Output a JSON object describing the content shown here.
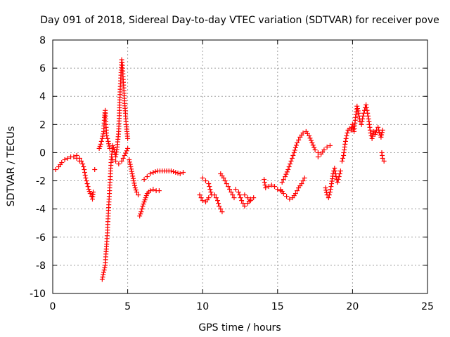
{
  "chart_data": {
    "type": "scatter",
    "title": "Day 091 of 2018, Sidereal Day-to-day VTEC variation (SDTVAR) for receiver pove",
    "xlabel": "GPS time / hours",
    "ylabel": "SDTVAR / TECUs",
    "xlim": [
      0,
      25
    ],
    "ylim": [
      -10,
      8
    ],
    "xticks": [
      "0",
      "5",
      "10",
      "15",
      "20",
      "25"
    ],
    "yticks": [
      "-10",
      "-8",
      "-6",
      "-4",
      "-2",
      "0",
      "2",
      "4",
      "6",
      "8"
    ],
    "grid": true,
    "marker": "+",
    "color": "#ff0000",
    "series": [
      {
        "name": "SDTVAR",
        "segments": [
          [
            [
              0.2,
              -1.2
            ],
            [
              0.4,
              -1.0
            ],
            [
              0.6,
              -0.7
            ],
            [
              0.8,
              -0.5
            ],
            [
              1.0,
              -0.4
            ],
            [
              1.2,
              -0.3
            ],
            [
              1.4,
              -0.3
            ],
            [
              1.6,
              -0.4
            ],
            [
              1.8,
              -0.6
            ]
          ],
          [
            [
              1.6,
              -0.2
            ],
            [
              1.8,
              -0.4
            ],
            [
              2.0,
              -0.8
            ],
            [
              2.1,
              -1.2
            ],
            [
              2.2,
              -1.8
            ],
            [
              2.3,
              -2.2
            ],
            [
              2.4,
              -2.6
            ],
            [
              2.5,
              -2.9
            ],
            [
              2.6,
              -3.1
            ],
            [
              2.7,
              -2.8
            ],
            [
              2.65,
              -3.3
            ]
          ],
          [
            [
              2.8,
              -1.2
            ]
          ],
          [
            [
              3.1,
              0.3
            ],
            [
              3.2,
              0.6
            ],
            [
              3.3,
              1.0
            ],
            [
              3.4,
              1.5
            ],
            [
              3.45,
              2.5
            ],
            [
              3.5,
              3.0
            ],
            [
              3.55,
              2.0
            ],
            [
              3.6,
              1.2
            ],
            [
              3.7,
              0.8
            ],
            [
              3.8,
              0.3
            ]
          ],
          [
            [
              3.3,
              -9.0
            ],
            [
              3.4,
              -8.5
            ],
            [
              3.5,
              -8.0
            ],
            [
              3.55,
              -7.2
            ],
            [
              3.6,
              -6.5
            ],
            [
              3.65,
              -5.5
            ],
            [
              3.7,
              -4.5
            ],
            [
              3.75,
              -3.5
            ],
            [
              3.8,
              -2.5
            ],
            [
              3.85,
              -1.5
            ],
            [
              3.9,
              -0.5
            ],
            [
              4.0,
              0.5
            ],
            [
              4.1,
              0.2
            ],
            [
              4.2,
              -0.3
            ],
            [
              4.3,
              0.4
            ],
            [
              4.4,
              1.5
            ],
            [
              4.45,
              3.0
            ],
            [
              4.5,
              4.5
            ],
            [
              4.55,
              5.5
            ],
            [
              4.6,
              6.6
            ],
            [
              4.65,
              6.2
            ],
            [
              4.7,
              5.2
            ],
            [
              4.75,
              4.4
            ],
            [
              4.8,
              3.5
            ],
            [
              4.85,
              2.8
            ],
            [
              4.9,
              2.0
            ],
            [
              4.95,
              1.5
            ],
            [
              5.0,
              1.0
            ]
          ],
          [
            [
              4.0,
              -0.5
            ],
            [
              4.2,
              -0.6
            ],
            [
              4.4,
              -0.8
            ],
            [
              4.6,
              -0.6
            ],
            [
              4.8,
              -0.2
            ],
            [
              5.0,
              0.3
            ]
          ],
          [
            [
              5.1,
              -0.5
            ],
            [
              5.2,
              -1.0
            ],
            [
              5.3,
              -1.5
            ],
            [
              5.4,
              -2.0
            ],
            [
              5.5,
              -2.5
            ],
            [
              5.6,
              -2.8
            ],
            [
              5.7,
              -3.0
            ]
          ],
          [
            [
              5.8,
              -4.5
            ],
            [
              5.9,
              -4.2
            ],
            [
              6.0,
              -3.8
            ],
            [
              6.1,
              -3.5
            ],
            [
              6.2,
              -3.2
            ],
            [
              6.3,
              -2.9
            ],
            [
              6.4,
              -2.8
            ],
            [
              6.5,
              -2.7
            ],
            [
              6.7,
              -2.6
            ],
            [
              6.9,
              -2.7
            ],
            [
              7.1,
              -2.7
            ]
          ],
          [
            [
              6.1,
              -1.9
            ],
            [
              6.3,
              -1.7
            ],
            [
              6.5,
              -1.5
            ],
            [
              6.7,
              -1.4
            ],
            [
              7.0,
              -1.3
            ],
            [
              7.3,
              -1.3
            ],
            [
              7.6,
              -1.3
            ],
            [
              7.9,
              -1.3
            ],
            [
              8.2,
              -1.4
            ],
            [
              8.5,
              -1.5
            ],
            [
              8.7,
              -1.4
            ]
          ],
          [
            [
              9.8,
              -3.0
            ],
            [
              10.0,
              -3.4
            ],
            [
              10.2,
              -3.5
            ],
            [
              10.4,
              -3.2
            ]
          ],
          [
            [
              10.0,
              -1.8
            ],
            [
              10.2,
              -2.0
            ],
            [
              10.4,
              -2.2
            ],
            [
              10.5,
              -2.6
            ],
            [
              10.6,
              -3.0
            ]
          ],
          [
            [
              10.8,
              -3.0
            ],
            [
              11.0,
              -3.4
            ],
            [
              11.1,
              -3.8
            ],
            [
              11.2,
              -4.0
            ],
            [
              11.3,
              -4.2
            ]
          ],
          [
            [
              11.2,
              -1.5
            ],
            [
              11.4,
              -1.8
            ],
            [
              11.6,
              -2.2
            ],
            [
              11.8,
              -2.6
            ],
            [
              12.0,
              -3.0
            ],
            [
              12.1,
              -3.2
            ]
          ],
          [
            [
              12.2,
              -2.6
            ],
            [
              12.4,
              -2.8
            ],
            [
              12.6,
              -3.4
            ],
            [
              12.8,
              -3.8
            ],
            [
              13.0,
              -3.6
            ],
            [
              13.2,
              -3.3
            ],
            [
              13.4,
              -3.2
            ]
          ],
          [
            [
              12.8,
              -3.0
            ],
            [
              13.0,
              -3.2
            ],
            [
              13.2,
              -3.4
            ]
          ],
          [
            [
              14.1,
              -1.9
            ],
            [
              14.2,
              -2.5
            ],
            [
              14.4,
              -2.4
            ],
            [
              14.6,
              -2.3
            ],
            [
              14.8,
              -2.4
            ],
            [
              15.0,
              -2.6
            ],
            [
              15.2,
              -2.7
            ]
          ],
          [
            [
              15.2,
              -2.6
            ],
            [
              15.4,
              -2.9
            ],
            [
              15.6,
              -3.1
            ],
            [
              15.8,
              -3.3
            ],
            [
              16.0,
              -3.2
            ],
            [
              16.2,
              -2.9
            ],
            [
              16.4,
              -2.5
            ],
            [
              16.6,
              -2.2
            ],
            [
              16.8,
              -1.8
            ]
          ],
          [
            [
              15.3,
              -2.1
            ],
            [
              15.5,
              -1.7
            ],
            [
              15.7,
              -1.2
            ],
            [
              15.9,
              -0.6
            ],
            [
              16.1,
              0.0
            ],
            [
              16.3,
              0.7
            ],
            [
              16.5,
              1.1
            ],
            [
              16.7,
              1.4
            ],
            [
              16.9,
              1.5
            ],
            [
              17.1,
              1.2
            ],
            [
              17.3,
              0.7
            ],
            [
              17.5,
              0.2
            ],
            [
              17.7,
              0.0
            ]
          ],
          [
            [
              17.7,
              -0.3
            ],
            [
              17.9,
              -0.1
            ],
            [
              18.1,
              0.2
            ],
            [
              18.3,
              0.4
            ],
            [
              18.5,
              0.5
            ]
          ],
          [
            [
              18.2,
              -2.5
            ],
            [
              18.3,
              -3.0
            ],
            [
              18.4,
              -3.2
            ],
            [
              18.5,
              -2.8
            ],
            [
              18.6,
              -2.2
            ],
            [
              18.7,
              -1.5
            ],
            [
              18.8,
              -1.1
            ],
            [
              18.9,
              -1.7
            ],
            [
              19.0,
              -2.1
            ],
            [
              19.1,
              -1.7
            ],
            [
              19.2,
              -1.3
            ]
          ],
          [
            [
              19.3,
              -0.6
            ],
            [
              19.4,
              -0.2
            ],
            [
              19.5,
              0.6
            ],
            [
              19.6,
              1.2
            ],
            [
              19.7,
              1.6
            ],
            [
              19.8,
              1.7
            ],
            [
              19.9,
              1.6
            ],
            [
              20.0,
              2.0
            ],
            [
              20.1,
              1.5
            ],
            [
              20.2,
              2.5
            ],
            [
              20.3,
              3.3
            ],
            [
              20.4,
              2.8
            ],
            [
              20.5,
              2.2
            ]
          ],
          [
            [
              20.6,
              2.0
            ],
            [
              20.7,
              2.6
            ],
            [
              20.8,
              3.0
            ],
            [
              20.9,
              3.4
            ],
            [
              21.0,
              2.8
            ],
            [
              21.1,
              2.2
            ],
            [
              21.2,
              1.4
            ],
            [
              21.3,
              1.0
            ],
            [
              21.4,
              1.5
            ],
            [
              21.5,
              1.3
            ],
            [
              21.6,
              1.6
            ],
            [
              21.7,
              1.8
            ],
            [
              21.8,
              1.4
            ],
            [
              21.9,
              1.1
            ],
            [
              22.0,
              1.6
            ]
          ],
          [
            [
              21.95,
              0.0
            ],
            [
              22.0,
              -0.4
            ],
            [
              22.1,
              -0.6
            ]
          ]
        ]
      }
    ]
  }
}
